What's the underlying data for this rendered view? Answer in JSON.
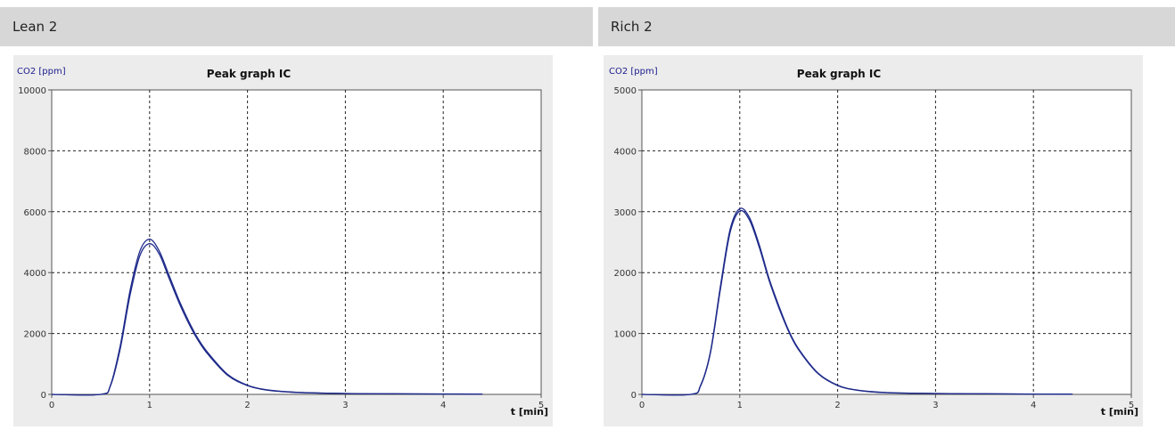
{
  "panels": [
    {
      "header": "Lean 2"
    },
    {
      "header": "Rich 2"
    }
  ],
  "chart_data": [
    {
      "type": "line",
      "title": "Peak graph IC",
      "ylabel": "CO2 [ppm]",
      "xlabel": "t [min]",
      "xlim": [
        0,
        5
      ],
      "ylim": [
        0,
        10000
      ],
      "xticks": [
        0,
        1,
        2,
        3,
        4,
        5
      ],
      "yticks": [
        0,
        2000,
        4000,
        6000,
        8000,
        10000
      ],
      "grid": true,
      "line_color": "#1e2a8a",
      "series": [
        {
          "x": [
            0,
            0.5,
            0.6,
            0.7,
            0.8,
            0.9,
            1.0,
            1.1,
            1.2,
            1.3,
            1.4,
            1.5,
            1.6,
            1.8,
            2.0,
            2.2,
            2.5,
            3.0,
            3.5,
            4.0,
            4.4
          ],
          "values": [
            0,
            0,
            300,
            1600,
            3400,
            4700,
            5100,
            4700,
            3900,
            3100,
            2400,
            1800,
            1350,
            650,
            300,
            150,
            70,
            30,
            20,
            15,
            10
          ]
        },
        {
          "x": [
            0,
            0.5,
            0.6,
            0.7,
            0.8,
            0.9,
            1.0,
            1.1,
            1.2,
            1.3,
            1.4,
            1.5,
            1.6,
            1.8,
            2.0,
            2.2,
            2.5,
            3.0,
            3.5,
            4.0,
            4.4
          ],
          "values": [
            0,
            0,
            280,
            1500,
            3250,
            4550,
            4950,
            4600,
            3800,
            3020,
            2330,
            1750,
            1300,
            620,
            290,
            140,
            65,
            28,
            18,
            12,
            8
          ]
        }
      ]
    },
    {
      "type": "line",
      "title": "Peak graph IC",
      "ylabel": "CO2 [ppm]",
      "xlabel": "t [min]",
      "xlim": [
        0,
        5
      ],
      "ylim": [
        0,
        5000
      ],
      "xticks": [
        0,
        1,
        2,
        3,
        4,
        5
      ],
      "yticks": [
        0,
        1000,
        2000,
        3000,
        4000,
        5000
      ],
      "grid": true,
      "line_color": "#1e2a8a",
      "series": [
        {
          "x": [
            0,
            0.5,
            0.6,
            0.7,
            0.8,
            0.9,
            1.0,
            1.1,
            1.2,
            1.3,
            1.4,
            1.5,
            1.6,
            1.8,
            2.0,
            2.2,
            2.5,
            3.0,
            3.5,
            4.0,
            4.4
          ],
          "values": [
            0,
            0,
            150,
            700,
            1750,
            2700,
            3050,
            2900,
            2450,
            1900,
            1450,
            1050,
            750,
            350,
            150,
            70,
            30,
            15,
            10,
            6,
            4
          ]
        },
        {
          "x": [
            0,
            0.5,
            0.6,
            0.7,
            0.8,
            0.9,
            1.0,
            1.1,
            1.2,
            1.3,
            1.4,
            1.5,
            1.6,
            1.8,
            2.0,
            2.2,
            2.5,
            3.0,
            3.5,
            4.0,
            4.4
          ],
          "values": [
            0,
            0,
            140,
            680,
            1700,
            2650,
            3010,
            2860,
            2410,
            1870,
            1420,
            1030,
            735,
            340,
            145,
            68,
            28,
            14,
            9,
            5,
            3
          ]
        }
      ]
    }
  ]
}
